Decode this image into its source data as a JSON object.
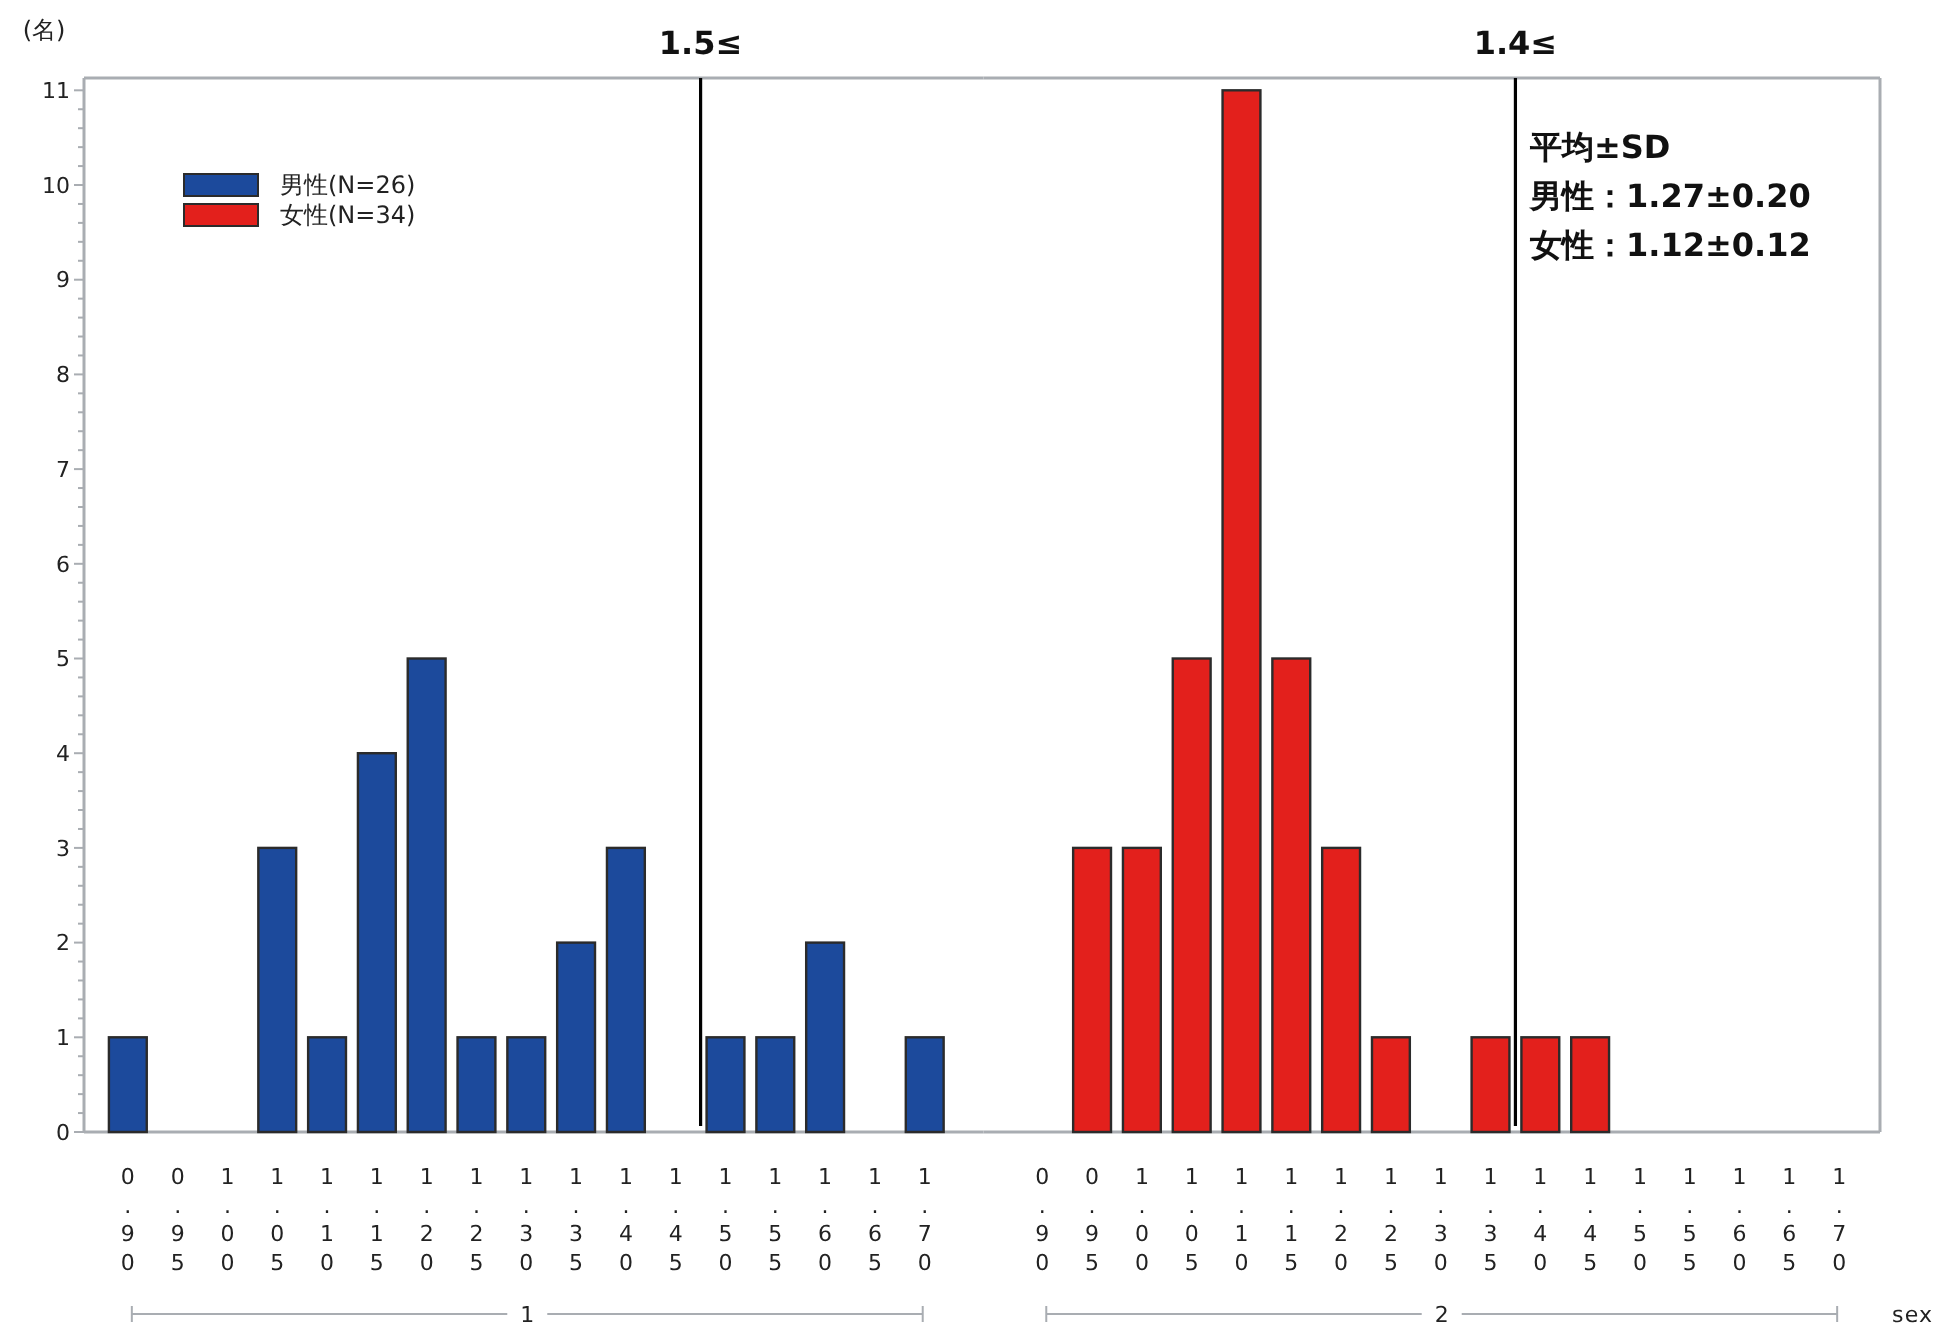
{
  "chart_data": [
    {
      "type": "bar",
      "ylabel": "(名)",
      "xlabel": "1",
      "legend": "top left",
      "x": [
        0.9,
        0.95,
        1.0,
        1.05,
        1.1,
        1.15,
        1.2,
        1.25,
        1.3,
        1.35,
        1.4,
        1.45,
        1.5,
        1.55,
        1.6,
        1.65,
        1.7
      ],
      "series": [
        {
          "name": "男性(N=26)",
          "color": "#1c4a9c",
          "values": [
            1,
            0,
            0,
            3,
            1,
            4,
            5,
            1,
            1,
            2,
            3,
            0,
            1,
            1,
            2,
            0,
            1
          ]
        }
      ],
      "xlim": [
        0.856,
        1.759
      ],
      "xticks": [
        {
          "value": 0.9,
          "label": "0.90"
        },
        {
          "value": 0.95,
          "label": "0.95"
        },
        {
          "value": 1.0,
          "label": "1.00"
        },
        {
          "value": 1.05,
          "label": "1.05"
        },
        {
          "value": 1.1,
          "label": "1.10"
        },
        {
          "value": 1.15,
          "label": "1.15"
        },
        {
          "value": 1.2,
          "label": "1.20"
        },
        {
          "value": 1.25,
          "label": "1.25"
        },
        {
          "value": 1.3,
          "label": "1.30"
        },
        {
          "value": 1.35,
          "label": "1.35"
        },
        {
          "value": 1.4,
          "label": "1.40"
        },
        {
          "value": 1.45,
          "label": "1.45"
        },
        {
          "value": 1.5,
          "label": "1.50"
        },
        {
          "value": 1.55,
          "label": "1.55"
        },
        {
          "value": 1.6,
          "label": "1.60"
        },
        {
          "value": 1.65,
          "label": "1.65"
        },
        {
          "value": 1.7,
          "label": "1.70"
        }
      ],
      "ylim": [
        0,
        11.13
      ],
      "yticks": [
        0,
        {
          "value": 0.2,
          "label": null
        },
        {
          "value": 0.4,
          "label": null
        },
        {
          "value": 0.6,
          "label": null
        },
        {
          "value": 0.8,
          "label": null
        },
        1,
        {
          "value": 1.2,
          "label": null
        },
        {
          "value": 1.4,
          "label": null
        },
        {
          "value": 1.6,
          "label": null
        },
        {
          "value": 1.8,
          "label": null
        },
        2,
        {
          "value": 2.2,
          "label": null
        },
        {
          "value": 2.4,
          "label": null
        },
        {
          "value": 2.6,
          "label": null
        },
        {
          "value": 2.8,
          "label": null
        },
        3,
        {
          "value": 3.2,
          "label": null
        },
        {
          "value": 3.4,
          "label": null
        },
        {
          "value": 3.6,
          "label": null
        },
        {
          "value": 3.8,
          "label": null
        },
        4,
        {
          "value": 4.2,
          "label": null
        },
        {
          "value": 4.4,
          "label": null
        },
        {
          "value": 4.6,
          "label": null
        },
        {
          "value": 4.8,
          "label": null
        },
        5,
        {
          "value": 5.2,
          "label": null
        },
        {
          "value": 5.4,
          "label": null
        },
        {
          "value": 5.6,
          "label": null
        },
        {
          "value": 5.8,
          "label": null
        },
        6,
        {
          "value": 6.2,
          "label": null
        },
        {
          "value": 6.4,
          "label": null
        },
        {
          "value": 6.6,
          "label": null
        },
        {
          "value": 6.8,
          "label": null
        },
        7,
        {
          "value": 7.2,
          "label": null
        },
        {
          "value": 7.4,
          "label": null
        },
        {
          "value": 7.6,
          "label": null
        },
        {
          "value": 7.8,
          "label": null
        },
        8,
        {
          "value": 8.2,
          "label": null
        },
        {
          "value": 8.4,
          "label": null
        },
        {
          "value": 8.6,
          "label": null
        },
        {
          "value": 8.8,
          "label": null
        },
        9,
        {
          "value": 9.2,
          "label": null
        },
        {
          "value": 9.4,
          "label": null
        },
        {
          "value": 9.6,
          "label": null
        },
        {
          "value": 9.8,
          "label": null
        },
        10,
        {
          "value": 10.2,
          "label": null
        },
        {
          "value": 10.4,
          "label": null
        },
        {
          "value": 10.6,
          "label": null
        },
        {
          "value": 10.8,
          "label": null
        },
        11
      ],
      "ref_lines": [
        {
          "axis": "x",
          "value": 1.475,
          "label": "1.5≤",
          "color": "#000000"
        }
      ]
    },
    {
      "type": "bar",
      "xlabel": "2",
      "legend": "top left",
      "tick_labels": "x",
      "x": [
        0.9,
        0.95,
        1.0,
        1.05,
        1.1,
        1.15,
        1.2,
        1.25,
        1.3,
        1.35,
        1.4,
        1.45,
        1.5,
        1.55,
        1.6,
        1.65,
        1.7
      ],
      "series": [
        {
          "name": "女性(N=34)",
          "color": "#e3201c",
          "values": [
            0,
            3,
            3,
            5,
            11,
            5,
            3,
            1,
            0,
            1,
            1,
            1,
            0,
            0,
            0,
            0,
            0
          ]
        }
      ],
      "xlim": [
        0.841,
        1.741
      ],
      "xticks": [
        {
          "value": 0.9,
          "label": "0.90"
        },
        {
          "value": 0.95,
          "label": "0.95"
        },
        {
          "value": 1.0,
          "label": "1.00"
        },
        {
          "value": 1.05,
          "label": "1.05"
        },
        {
          "value": 1.1,
          "label": "1.10"
        },
        {
          "value": 1.15,
          "label": "1.15"
        },
        {
          "value": 1.2,
          "label": "1.20"
        },
        {
          "value": 1.25,
          "label": "1.25"
        },
        {
          "value": 1.3,
          "label": "1.30"
        },
        {
          "value": 1.35,
          "label": "1.35"
        },
        {
          "value": 1.4,
          "label": "1.40"
        },
        {
          "value": 1.45,
          "label": "1.45"
        },
        {
          "value": 1.5,
          "label": "1.50"
        },
        {
          "value": 1.55,
          "label": "1.55"
        },
        {
          "value": 1.6,
          "label": "1.60"
        },
        {
          "value": 1.65,
          "label": "1.65"
        },
        {
          "value": 1.7,
          "label": "1.70"
        }
      ],
      "ylim": [
        0,
        11.13
      ],
      "ref_lines": [
        {
          "axis": "x",
          "value": 1.375,
          "label": "1.4≤",
          "color": "#000000"
        }
      ],
      "annotations": [
        "平均±SD",
        "男性：1.27±0.20",
        "女性：1.12±0.12",
        "sex"
      ]
    }
  ]
}
